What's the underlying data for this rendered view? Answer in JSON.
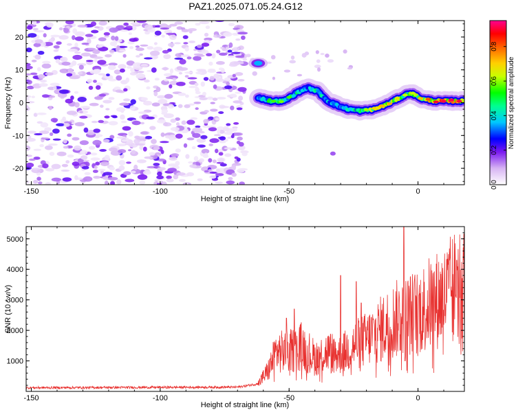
{
  "title": "PAZ1.2025.071.05.24.G12",
  "chart_data": [
    {
      "type": "heatmap",
      "xlabel": "Height of straight line (km)",
      "ylabel": "Frequency (Hz)",
      "xlim": [
        -152,
        18
      ],
      "ylim": [
        -25,
        25
      ],
      "x_ticks": [
        -150,
        -100,
        -50,
        0
      ],
      "y_ticks": [
        -20,
        -10,
        0,
        10,
        20
      ],
      "x_tick_labels": [
        "-150",
        "-100",
        "-50",
        "0"
      ],
      "y_tick_labels": [
        "-20",
        "-10",
        "0",
        "10",
        "20"
      ],
      "colorbar": {
        "label": "Normalized spectral amplitude",
        "range": [
          0,
          0.95
        ],
        "ticks": [
          0.0,
          0.2,
          0.4,
          0.6,
          0.8
        ],
        "tick_labels": [
          "0.0",
          "0.2",
          "0.4",
          "0.6",
          "0.8"
        ]
      },
      "noise_region_x": [
        -152,
        -67
      ],
      "signal_ridge": {
        "x": [
          -62,
          -57,
          -52,
          -47,
          -43,
          -39,
          -35,
          -31,
          -27,
          -22,
          -17,
          -12,
          -7,
          -3,
          2,
          7,
          12,
          18
        ],
        "frequency": [
          1.5,
          0.5,
          0.5,
          3,
          4.5,
          3.5,
          0.5,
          -1,
          -2,
          -2.5,
          -2,
          -0.5,
          1.5,
          3,
          1,
          0.5,
          0.5,
          0.5
        ],
        "amplitude": [
          0.5,
          0.55,
          0.6,
          0.5,
          0.45,
          0.5,
          0.45,
          0.4,
          0.45,
          0.55,
          0.7,
          0.75,
          0.65,
          0.6,
          0.75,
          0.9,
          0.92,
          0.9
        ]
      },
      "extra_blob": {
        "x": -62,
        "frequency": 12,
        "amplitude": 0.35
      },
      "isolated_blob": {
        "x": -33,
        "frequency": -15.5,
        "amplitude": 0.15
      }
    },
    {
      "type": "line",
      "xlabel": "Height of straight line (km)",
      "ylabel": "SNR (10 * v/v)",
      "xlim": [
        -152,
        18
      ],
      "ylim": [
        0,
        5400
      ],
      "x_ticks": [
        -150,
        -100,
        -50,
        0
      ],
      "y_ticks": [
        1000,
        2000,
        3000,
        4000,
        5000
      ],
      "x_tick_labels": [
        "-150",
        "-100",
        "-50",
        "0"
      ],
      "y_tick_labels": [
        "1000",
        "2000",
        "3000",
        "4000",
        "5000"
      ],
      "color": "#e8312f",
      "trend_x": [
        -152,
        -70,
        -62,
        -58,
        -55,
        -50,
        -45,
        -40,
        -35,
        -30,
        -25,
        -20,
        -15,
        -10,
        -5,
        0,
        5,
        10,
        15,
        18
      ],
      "trend_y": [
        120,
        140,
        250,
        700,
        1300,
        1300,
        1500,
        1100,
        1300,
        1200,
        1500,
        1700,
        2000,
        2300,
        2500,
        2600,
        2900,
        3100,
        3500,
        3600
      ],
      "spikes": [
        {
          "x": -48,
          "y": 2700
        },
        {
          "x": -51,
          "y": 2400
        },
        {
          "x": -30,
          "y": 3800
        },
        {
          "x": -24,
          "y": 3600
        },
        {
          "x": -22,
          "y": 2900
        },
        {
          "x": -5.5,
          "y": 5400
        },
        {
          "x": -5,
          "y": 1000
        },
        {
          "x": 15,
          "y": 4300
        }
      ]
    }
  ]
}
